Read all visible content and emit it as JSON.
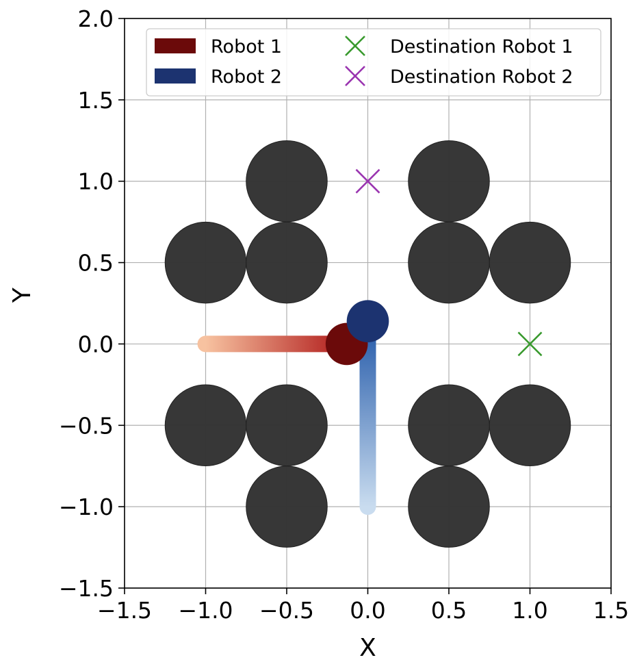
{
  "chart_data": {
    "type": "scatter",
    "xlabel": "X",
    "ylabel": "Y",
    "xlim": [
      -1.5,
      1.5
    ],
    "ylim": [
      -1.5,
      2.0
    ],
    "xticks": [
      "−1.5",
      "−1.0",
      "−0.5",
      "0.0",
      "0.5",
      "1.0",
      "1.5"
    ],
    "yticks": [
      "−1.5",
      "−1.0",
      "−0.5",
      "0.0",
      "0.5",
      "1.0",
      "1.5",
      "2.0"
    ],
    "xtick_values": [
      -1.5,
      -1.0,
      -0.5,
      0.0,
      0.5,
      1.0,
      1.5
    ],
    "ytick_values": [
      -1.5,
      -1.0,
      -0.5,
      0.0,
      0.5,
      1.0,
      1.5,
      2.0
    ],
    "grid": true,
    "legend_position": "top-right",
    "obstacles": {
      "radius": 0.25,
      "color": "#333333",
      "centers": [
        [
          -0.5,
          1.0
        ],
        [
          -1.0,
          0.5
        ],
        [
          -0.5,
          0.5
        ],
        [
          0.5,
          1.0
        ],
        [
          0.5,
          0.5
        ],
        [
          1.0,
          0.5
        ],
        [
          -1.0,
          -0.5
        ],
        [
          -0.5,
          -0.5
        ],
        [
          -0.5,
          -1.0
        ],
        [
          0.5,
          -0.5
        ],
        [
          1.0,
          -0.5
        ],
        [
          0.5,
          -1.0
        ]
      ]
    },
    "series": [
      {
        "name": "Robot 1",
        "color": "#6b0a0a",
        "path_start_color": "#f7c2a0",
        "path_end_color": "#b01a1a",
        "path": [
          [
            -1.0,
            0.0
          ],
          [
            -0.13,
            0.0
          ]
        ],
        "position": [
          -0.13,
          0.0
        ],
        "radius": 0.13
      },
      {
        "name": "Robot 2",
        "color": "#1c3370",
        "path_start_color": "#c9dcef",
        "path_end_color": "#2258a8",
        "path": [
          [
            0.0,
            -1.0
          ],
          [
            0.0,
            0.14
          ]
        ],
        "position": [
          0.0,
          0.14
        ],
        "radius": 0.13
      }
    ],
    "destinations": [
      {
        "name": "Destination Robot 1",
        "x": 1.0,
        "y": 0.0,
        "color": "#3a9a2f"
      },
      {
        "name": "Destination Robot 2",
        "x": 0.0,
        "y": 1.0,
        "color": "#9a35b0"
      }
    ]
  }
}
